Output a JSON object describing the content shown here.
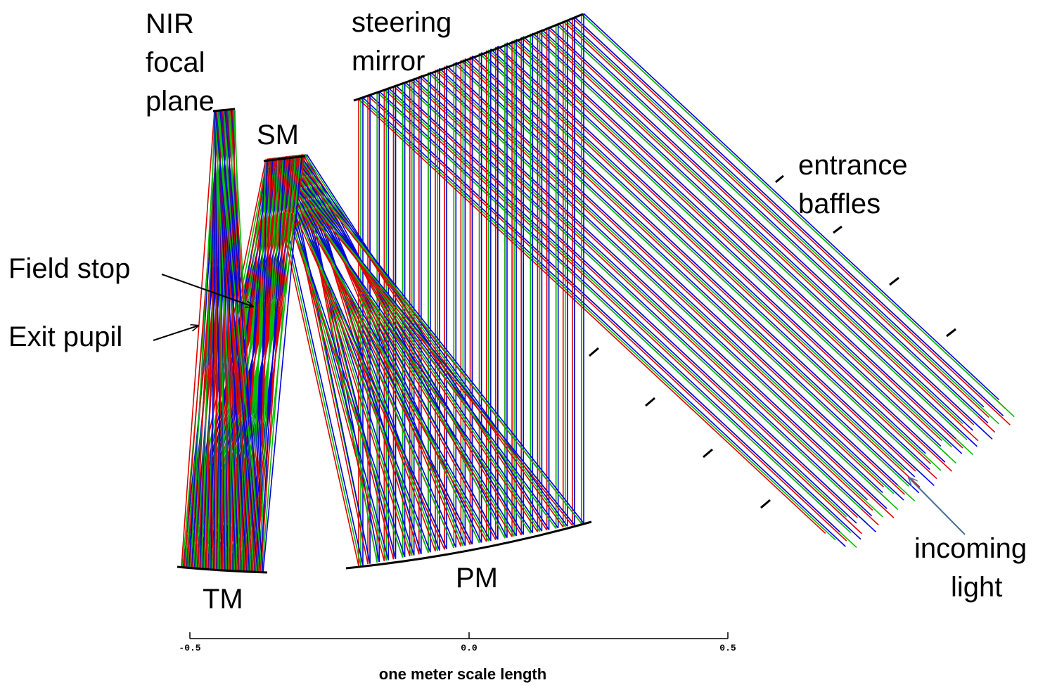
{
  "labels": {
    "nir_focal_plane": [
      "NIR",
      "focal",
      "plane"
    ],
    "steering_mirror": [
      "steering",
      "mirror"
    ],
    "sm": "SM",
    "entrance_baffles": [
      "entrance",
      "baffles"
    ],
    "field_stop": "Field stop",
    "exit_pupil": "Exit pupil",
    "tm": "TM",
    "pm": "PM",
    "incoming_light": [
      "incoming",
      "light"
    ]
  },
  "scale": {
    "ticks": [
      "-0.5",
      "0.0",
      "0.5"
    ],
    "label": "one meter scale length"
  }
}
